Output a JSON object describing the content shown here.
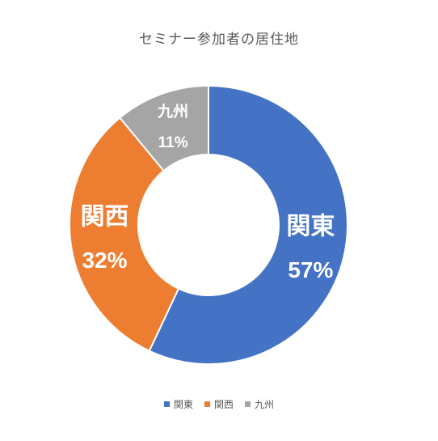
{
  "chart_data": {
    "type": "pie",
    "variant": "donut",
    "title": "セミナー参加者の居住地",
    "categories": [
      "関東",
      "関西",
      "九州"
    ],
    "values": [
      57,
      32,
      11
    ],
    "value_labels": [
      "57%",
      "32%",
      "11%"
    ],
    "colors": [
      "#4472C4",
      "#ED7D31",
      "#A5A5A5"
    ],
    "legend_position": "bottom"
  }
}
